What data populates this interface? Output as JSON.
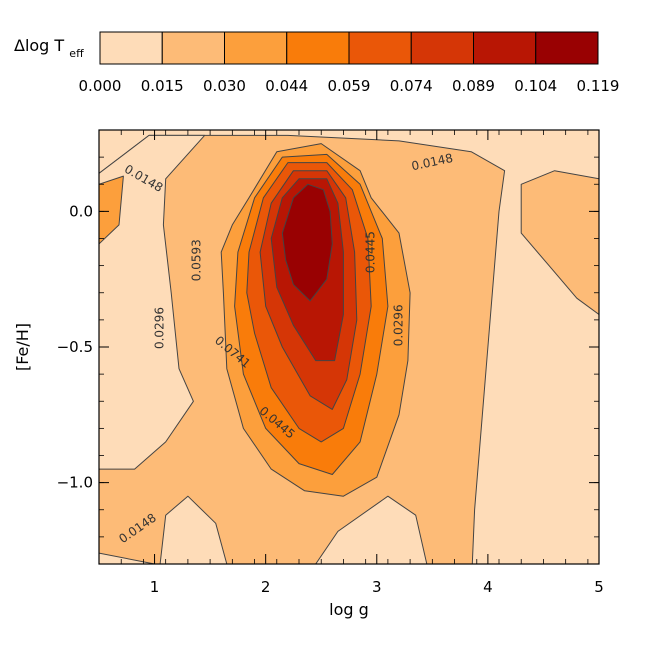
{
  "chart_data": {
    "type": "contour",
    "colorbar": {
      "title_main": "Δlog T",
      "title_sub": "eff",
      "levels": [
        "0.000",
        "0.015",
        "0.030",
        "0.044",
        "0.059",
        "0.074",
        "0.089",
        "0.104",
        "0.119"
      ],
      "colors": [
        "#fedcb8",
        "#fdbb77",
        "#fc9f3c",
        "#f97c0a",
        "#ea5708",
        "#d53606",
        "#b81604",
        "#990102"
      ]
    },
    "xlabel": "log g",
    "ylabel": "[Fe/H]",
    "xlim": [
      0.5,
      5.0
    ],
    "ylim": [
      -1.3,
      0.3
    ],
    "xticks": [
      {
        "value": 1,
        "label": "1"
      },
      {
        "value": 2,
        "label": "2"
      },
      {
        "value": 3,
        "label": "3"
      },
      {
        "value": 4,
        "label": "4"
      },
      {
        "value": 5,
        "label": "5"
      }
    ],
    "yticks": [
      {
        "value": 0.0,
        "label": "0.0"
      },
      {
        "value": -0.5,
        "label": "−0.5"
      },
      {
        "value": -1.0,
        "label": "−1.0"
      }
    ],
    "contour_labels": [
      {
        "text": "0.0148",
        "x": 0.9,
        "y": 0.12,
        "angle": 30
      },
      {
        "text": "0.0148",
        "x": 3.5,
        "y": 0.18,
        "angle": -12
      },
      {
        "text": "0.0148",
        "x": 0.85,
        "y": -1.17,
        "angle": -35
      },
      {
        "text": "0.0296",
        "x": 1.05,
        "y": -0.43,
        "angle": -90
      },
      {
        "text": "0.0296",
        "x": 3.2,
        "y": -0.42,
        "angle": -90
      },
      {
        "text": "0.0445",
        "x": 2.95,
        "y": -0.15,
        "angle": -90
      },
      {
        "text": "0.0445",
        "x": 2.1,
        "y": -0.78,
        "angle": 40
      },
      {
        "text": "0.0593",
        "x": 1.38,
        "y": -0.18,
        "angle": -90
      },
      {
        "text": "0.0741",
        "x": 1.7,
        "y": -0.52,
        "angle": 40
      }
    ],
    "regions": [
      {
        "level_index": 1,
        "points": [
          [
            0.5,
            0.14
          ],
          [
            0.95,
            0.28
          ],
          [
            2.2,
            0.28
          ],
          [
            3.2,
            0.26
          ],
          [
            3.85,
            0.22
          ],
          [
            4.15,
            0.15
          ],
          [
            4.1,
            0.0
          ],
          [
            4.0,
            -0.5
          ],
          [
            3.88,
            -1.1
          ],
          [
            3.86,
            -1.3
          ],
          [
            3.45,
            -1.3
          ],
          [
            3.35,
            -1.12
          ],
          [
            3.1,
            -1.05
          ],
          [
            2.65,
            -1.18
          ],
          [
            2.45,
            -1.3
          ],
          [
            1.65,
            -1.3
          ],
          [
            1.55,
            -1.15
          ],
          [
            1.3,
            -1.05
          ],
          [
            1.1,
            -1.12
          ],
          [
            1.05,
            -1.3
          ],
          [
            0.5,
            -1.3
          ]
        ]
      },
      {
        "level_index": 1,
        "points": [
          [
            4.3,
            0.1
          ],
          [
            4.6,
            0.15
          ],
          [
            5.0,
            0.12
          ],
          [
            5.0,
            -0.38
          ],
          [
            4.8,
            -0.32
          ],
          [
            4.55,
            -0.2
          ],
          [
            4.3,
            -0.08
          ]
        ]
      },
      {
        "level_index": 0,
        "points": [
          [
            0.5,
            0.14
          ],
          [
            0.95,
            0.28
          ],
          [
            1.45,
            0.28
          ],
          [
            1.1,
            0.12
          ],
          [
            1.08,
            -0.05
          ],
          [
            1.15,
            -0.3
          ],
          [
            1.22,
            -0.58
          ],
          [
            1.35,
            -0.7
          ],
          [
            1.1,
            -0.85
          ],
          [
            0.82,
            -0.95
          ],
          [
            0.5,
            -0.95
          ]
        ]
      },
      {
        "level_index": 0,
        "points": [
          [
            0.5,
            -1.26
          ],
          [
            1.0,
            -1.3
          ],
          [
            0.5,
            -1.3
          ]
        ]
      },
      {
        "level_index": 2,
        "points": [
          [
            0.5,
            0.1
          ],
          [
            0.72,
            0.13
          ],
          [
            0.68,
            -0.05
          ],
          [
            0.5,
            -0.12
          ]
        ]
      },
      {
        "level_index": 2,
        "points": [
          [
            1.6,
            -0.15
          ],
          [
            1.7,
            -0.05
          ],
          [
            1.85,
            0.05
          ],
          [
            2.1,
            0.22
          ],
          [
            2.5,
            0.25
          ],
          [
            2.85,
            0.15
          ],
          [
            2.95,
            0.05
          ],
          [
            3.2,
            -0.08
          ],
          [
            3.3,
            -0.3
          ],
          [
            3.28,
            -0.55
          ],
          [
            3.2,
            -0.75
          ],
          [
            3.0,
            -0.98
          ],
          [
            2.7,
            -1.05
          ],
          [
            2.35,
            -1.03
          ],
          [
            2.05,
            -0.95
          ],
          [
            1.8,
            -0.8
          ],
          [
            1.65,
            -0.58
          ],
          [
            1.62,
            -0.3
          ]
        ]
      },
      {
        "level_index": 3,
        "points": [
          [
            1.75,
            -0.15
          ],
          [
            1.9,
            0.05
          ],
          [
            2.15,
            0.2
          ],
          [
            2.55,
            0.21
          ],
          [
            2.85,
            0.1
          ],
          [
            3.05,
            -0.1
          ],
          [
            3.1,
            -0.35
          ],
          [
            3.0,
            -0.6
          ],
          [
            2.85,
            -0.85
          ],
          [
            2.6,
            -0.97
          ],
          [
            2.3,
            -0.93
          ],
          [
            2.0,
            -0.8
          ],
          [
            1.8,
            -0.6
          ],
          [
            1.72,
            -0.35
          ]
        ]
      },
      {
        "level_index": 4,
        "points": [
          [
            1.85,
            -0.15
          ],
          [
            1.98,
            0.05
          ],
          [
            2.2,
            0.18
          ],
          [
            2.55,
            0.18
          ],
          [
            2.78,
            0.08
          ],
          [
            2.92,
            -0.1
          ],
          [
            2.95,
            -0.35
          ],
          [
            2.85,
            -0.6
          ],
          [
            2.7,
            -0.8
          ],
          [
            2.5,
            -0.85
          ],
          [
            2.3,
            -0.8
          ],
          [
            2.05,
            -0.65
          ],
          [
            1.9,
            -0.45
          ],
          [
            1.83,
            -0.3
          ]
        ]
      },
      {
        "level_index": 5,
        "points": [
          [
            1.95,
            -0.15
          ],
          [
            2.05,
            0.03
          ],
          [
            2.25,
            0.15
          ],
          [
            2.55,
            0.15
          ],
          [
            2.72,
            0.05
          ],
          [
            2.8,
            -0.15
          ],
          [
            2.82,
            -0.4
          ],
          [
            2.73,
            -0.62
          ],
          [
            2.6,
            -0.73
          ],
          [
            2.4,
            -0.68
          ],
          [
            2.15,
            -0.5
          ],
          [
            2.0,
            -0.35
          ]
        ]
      },
      {
        "level_index": 6,
        "points": [
          [
            2.05,
            -0.1
          ],
          [
            2.15,
            0.05
          ],
          [
            2.3,
            0.12
          ],
          [
            2.55,
            0.12
          ],
          [
            2.65,
            0.03
          ],
          [
            2.7,
            -0.15
          ],
          [
            2.7,
            -0.38
          ],
          [
            2.62,
            -0.55
          ],
          [
            2.45,
            -0.55
          ],
          [
            2.25,
            -0.42
          ],
          [
            2.1,
            -0.28
          ]
        ]
      },
      {
        "level_index": 7,
        "points": [
          [
            2.15,
            -0.08
          ],
          [
            2.25,
            0.05
          ],
          [
            2.38,
            0.1
          ],
          [
            2.52,
            0.08
          ],
          [
            2.58,
            0.0
          ],
          [
            2.6,
            -0.12
          ],
          [
            2.55,
            -0.25
          ],
          [
            2.4,
            -0.33
          ],
          [
            2.25,
            -0.27
          ],
          [
            2.18,
            -0.18
          ]
        ]
      }
    ]
  }
}
